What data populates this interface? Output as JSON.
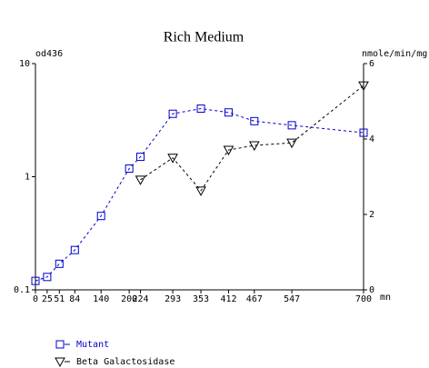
{
  "chart_data": {
    "type": "line",
    "title": "Rich Medium",
    "ylabel": "od436",
    "y2label": "nmole/min/mg",
    "xlabel": "mn",
    "x": [
      0,
      25,
      51,
      84,
      140,
      200,
      224,
      293,
      353,
      412,
      467,
      547,
      700
    ],
    "xlim": [
      0,
      700
    ],
    "xticks": [
      0,
      25,
      51,
      84,
      140,
      200,
      224,
      293,
      353,
      412,
      467,
      547,
      700
    ],
    "ylim": [
      0.1,
      10
    ],
    "yticks": [
      0.1,
      1,
      10
    ],
    "ylog": true,
    "y2lim": [
      0,
      6
    ],
    "y2ticks": [
      0,
      2,
      4,
      6
    ],
    "series": [
      {
        "name": "Mutant",
        "color": "#0000cc",
        "marker": "square",
        "values": [
          0.12,
          0.13,
          0.17,
          0.225,
          0.45,
          1.18,
          1.5,
          3.6,
          4.0,
          3.7,
          3.1,
          2.85,
          2.45
        ]
      },
      {
        "name": "Beta Galactosidase",
        "color": "#000000",
        "marker": "triangle-down",
        "axis": "y2",
        "values": [
          null,
          null,
          null,
          null,
          null,
          null,
          2.92,
          3.5,
          2.63,
          3.71,
          3.83,
          3.9,
          5.42
        ]
      }
    ]
  }
}
